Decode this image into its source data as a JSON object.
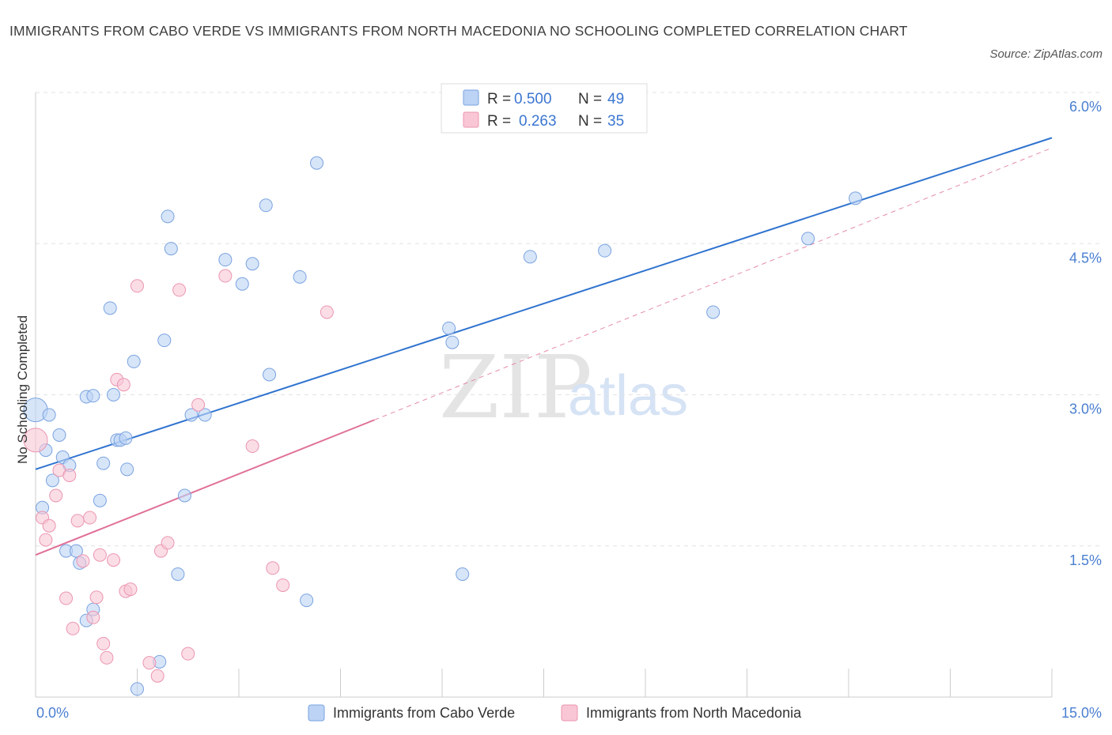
{
  "header": {
    "title": "IMMIGRANTS FROM CABO VERDE VS IMMIGRANTS FROM NORTH MACEDONIA NO SCHOOLING COMPLETED CORRELATION CHART",
    "source": "Source: ZipAtlas.com"
  },
  "watermark": {
    "zip": "ZIP",
    "atlas": "atlas"
  },
  "legend": {
    "rows": [
      {
        "r_label": "R =",
        "r_value": "0.500",
        "n_label": "N =",
        "n_value": "49"
      },
      {
        "r_label": "R =",
        "r_value": "0.263",
        "n_label": "N =",
        "n_value": "35"
      }
    ]
  },
  "colors": {
    "blue_fill": "#bcd3f5",
    "blue_stroke": "#7aa3e0",
    "blue_line": "#2f73cf",
    "pink_fill": "#f9c6d5",
    "pink_stroke": "#eb96b0",
    "pink_line": "#e07098"
  },
  "chart_data": {
    "type": "scatter",
    "xlabel": "",
    "ylabel": "No Schooling Completed",
    "xlim": [
      0,
      15
    ],
    "ylim": [
      0,
      6.0
    ],
    "x_tick_labels": [
      "0.0%",
      "15.0%"
    ],
    "y_ticks": [
      1.5,
      3.0,
      4.5,
      6.0
    ],
    "y_tick_labels": [
      "1.5%",
      "3.0%",
      "4.5%",
      "6.0%"
    ],
    "grid": true,
    "legend_position": "top-center",
    "series": [
      {
        "name": "Immigrants from Cabo Verde",
        "color": "blue",
        "points": [
          [
            0.0,
            2.85
          ],
          [
            0.2,
            2.8
          ],
          [
            0.35,
            2.6
          ],
          [
            0.15,
            2.45
          ],
          [
            0.4,
            2.38
          ],
          [
            0.5,
            2.3
          ],
          [
            0.25,
            2.15
          ],
          [
            0.1,
            1.88
          ],
          [
            0.45,
            1.45
          ],
          [
            0.6,
            1.45
          ],
          [
            0.65,
            1.33
          ],
          [
            0.75,
            2.98
          ],
          [
            0.85,
            2.99
          ],
          [
            0.95,
            1.95
          ],
          [
            1.0,
            2.32
          ],
          [
            1.1,
            3.86
          ],
          [
            1.15,
            3.0
          ],
          [
            1.2,
            2.55
          ],
          [
            1.25,
            2.55
          ],
          [
            1.33,
            2.57
          ],
          [
            1.35,
            2.26
          ],
          [
            1.45,
            3.33
          ],
          [
            1.5,
            0.08
          ],
          [
            1.9,
            3.54
          ],
          [
            1.95,
            4.77
          ],
          [
            2.0,
            4.45
          ],
          [
            2.1,
            1.22
          ],
          [
            2.2,
            2.0
          ],
          [
            2.3,
            2.8
          ],
          [
            2.5,
            2.8
          ],
          [
            2.8,
            4.34
          ],
          [
            3.05,
            4.1
          ],
          [
            3.2,
            4.3
          ],
          [
            3.4,
            4.88
          ],
          [
            3.45,
            3.2
          ],
          [
            3.9,
            4.17
          ],
          [
            4.0,
            0.96
          ],
          [
            4.15,
            5.3
          ],
          [
            6.1,
            3.66
          ],
          [
            6.15,
            3.52
          ],
          [
            6.3,
            1.22
          ],
          [
            7.3,
            4.37
          ],
          [
            8.4,
            4.43
          ],
          [
            10.0,
            3.82
          ],
          [
            11.4,
            4.55
          ],
          [
            12.1,
            4.95
          ],
          [
            0.75,
            0.76
          ],
          [
            0.85,
            0.87
          ],
          [
            1.83,
            0.35
          ]
        ]
      },
      {
        "name": "Immigrants from North Macedonia",
        "color": "pink",
        "points": [
          [
            0.0,
            2.55
          ],
          [
            0.1,
            1.78
          ],
          [
            0.15,
            1.56
          ],
          [
            0.2,
            1.7
          ],
          [
            0.3,
            2.0
          ],
          [
            0.35,
            2.25
          ],
          [
            0.45,
            0.98
          ],
          [
            0.5,
            2.2
          ],
          [
            0.55,
            0.68
          ],
          [
            0.62,
            1.75
          ],
          [
            0.7,
            1.35
          ],
          [
            0.8,
            1.78
          ],
          [
            0.85,
            0.79
          ],
          [
            0.9,
            0.99
          ],
          [
            0.95,
            1.41
          ],
          [
            1.0,
            0.53
          ],
          [
            1.05,
            0.39
          ],
          [
            1.15,
            1.36
          ],
          [
            1.2,
            3.15
          ],
          [
            1.3,
            3.1
          ],
          [
            1.33,
            1.05
          ],
          [
            1.4,
            1.07
          ],
          [
            1.5,
            4.08
          ],
          [
            1.68,
            0.34
          ],
          [
            1.8,
            0.21
          ],
          [
            1.85,
            1.45
          ],
          [
            1.95,
            1.53
          ],
          [
            2.12,
            4.04
          ],
          [
            2.25,
            0.43
          ],
          [
            2.4,
            2.9
          ],
          [
            2.8,
            4.18
          ],
          [
            3.2,
            2.49
          ],
          [
            3.5,
            1.28
          ],
          [
            3.65,
            1.11
          ],
          [
            4.3,
            3.82
          ]
        ]
      }
    ],
    "trendlines": [
      {
        "series": "Immigrants from Cabo Verde",
        "x": [
          0,
          15
        ],
        "y": [
          2.26,
          5.55
        ],
        "style": "solid"
      },
      {
        "series": "Immigrants from North Macedonia",
        "x": [
          0,
          5
        ],
        "y": [
          1.41,
          2.75
        ],
        "style": "solid"
      },
      {
        "series": "Immigrants from North Macedonia",
        "x": [
          5,
          15
        ],
        "y": [
          2.75,
          5.45
        ],
        "style": "dashed"
      }
    ]
  }
}
